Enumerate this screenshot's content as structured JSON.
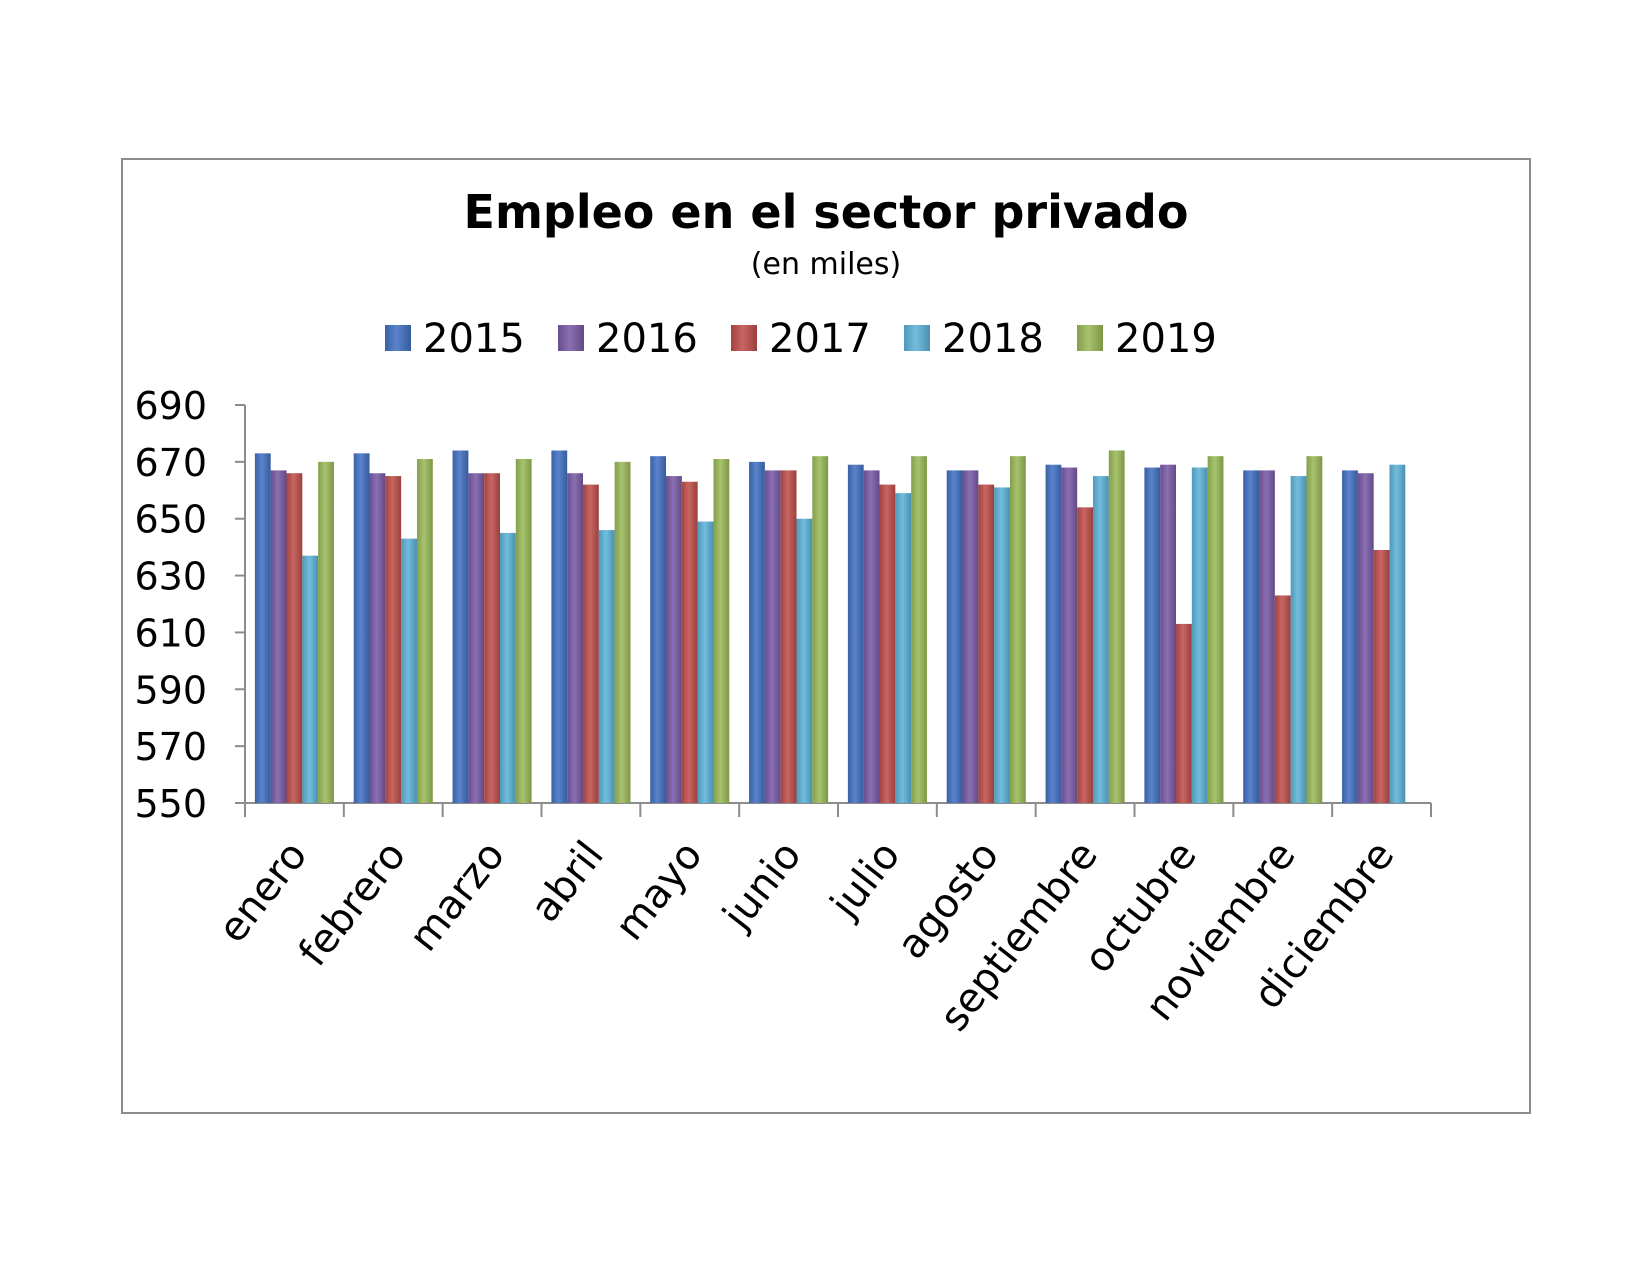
{
  "chart_data": {
    "type": "bar",
    "title": "Empleo en el sector privado",
    "subtitle": "(en miles)",
    "xlabel": "",
    "ylabel": "",
    "ylim": [
      550,
      690
    ],
    "yticks": [
      550,
      570,
      590,
      610,
      630,
      650,
      670,
      690
    ],
    "grid": false,
    "legend_position": "top",
    "categories": [
      "enero",
      "febrero",
      "marzo",
      "abril",
      "mayo",
      "junio",
      "julio",
      "agosto",
      "septiembre",
      "octubre",
      "noviembre",
      "diciembre"
    ],
    "series": [
      {
        "name": "2015",
        "color": "#4472c4",
        "values": [
          673,
          673,
          674,
          674,
          672,
          670,
          669,
          667,
          669,
          668,
          667,
          667
        ]
      },
      {
        "name": "2016",
        "color": "#7a5ca8",
        "values": [
          667,
          666,
          666,
          666,
          665,
          667,
          667,
          667,
          668,
          669,
          667,
          666
        ]
      },
      {
        "name": "2017",
        "color": "#c0504d",
        "values": [
          666,
          665,
          666,
          662,
          663,
          667,
          662,
          662,
          654,
          613,
          623,
          639
        ]
      },
      {
        "name": "2018",
        "color": "#5eb4d9",
        "values": [
          637,
          643,
          645,
          646,
          649,
          650,
          659,
          661,
          665,
          668,
          665,
          669
        ]
      },
      {
        "name": "2019",
        "color": "#9bbb59",
        "values": [
          670,
          671,
          671,
          670,
          671,
          672,
          672,
          672,
          674,
          672,
          672,
          null
        ]
      }
    ]
  }
}
